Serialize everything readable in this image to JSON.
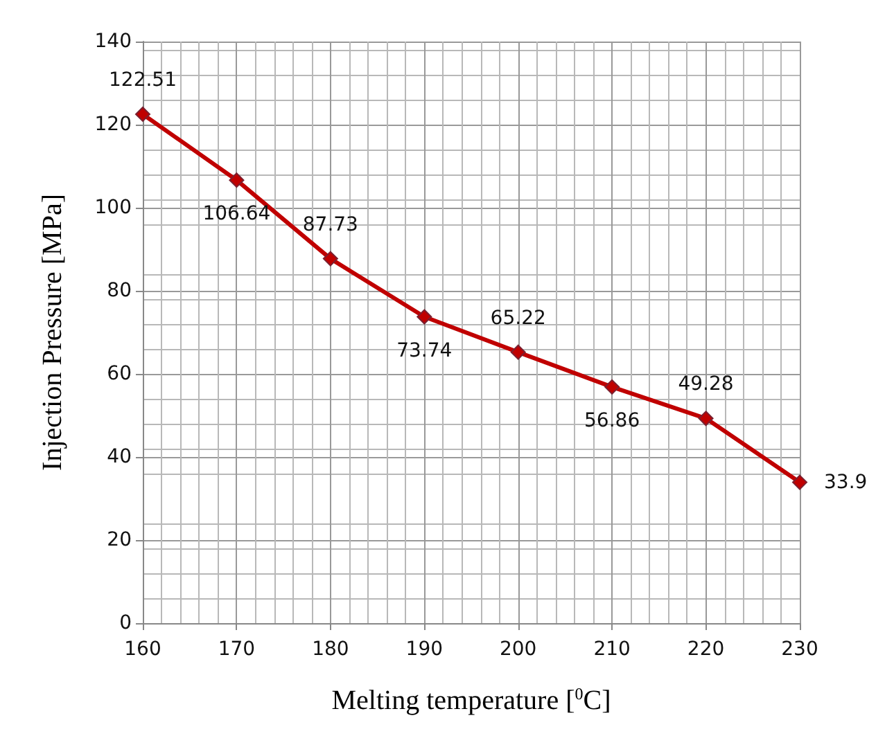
{
  "chart_data": {
    "type": "line",
    "xlabel": "Melting temperature [$^{0}$C]",
    "ylabel": "Injection Pressure [MPa]",
    "x": [
      160,
      170,
      180,
      190,
      200,
      210,
      220,
      230
    ],
    "series": [
      {
        "color": "#c00000",
        "values": [
          122.51,
          106.64,
          87.73,
          73.74,
          65.22,
          56.86,
          49.28,
          33.9
        ]
      }
    ],
    "xlim": [
      160,
      230
    ],
    "xticks": [
      160,
      170,
      180,
      190,
      200,
      210,
      220,
      230
    ],
    "ylim": [
      0,
      140
    ],
    "yticks": [
      0,
      20,
      40,
      60,
      80,
      100,
      120,
      140
    ],
    "grid": true,
    "marker": "diamond",
    "line_style": "solid",
    "data_labels": true
  }
}
